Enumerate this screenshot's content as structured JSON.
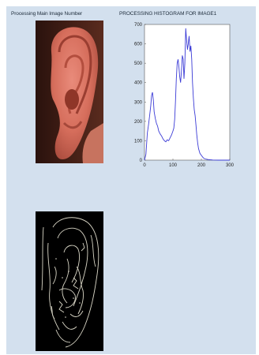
{
  "labels": {
    "left": "Processing Main Image Number",
    "right": "PROCESSING HISTOGRAM FOR IMAGE1"
  },
  "images": {
    "ear_photo": "ear-photo",
    "ear_edges": "ear-edge-map"
  },
  "colors": {
    "window_bg": "#d3e0ee",
    "plot_line": "#3b3bd6"
  },
  "chart_data": {
    "type": "line",
    "title": "",
    "xlabel": "",
    "ylabel": "",
    "xlim": [
      0,
      300
    ],
    "ylim": [
      0,
      700
    ],
    "xticks": [
      0,
      100,
      200,
      300
    ],
    "yticks": [
      0,
      100,
      200,
      300,
      400,
      500,
      600,
      700
    ],
    "series": [
      {
        "x": [
          0,
          5,
          10,
          14,
          18,
          22,
          25,
          28,
          31,
          34,
          38,
          42,
          46,
          50,
          55,
          60,
          65,
          70,
          75,
          80,
          85,
          90,
          95,
          100,
          103,
          106,
          109,
          112,
          115,
          118,
          121,
          124,
          127,
          130,
          133,
          136,
          139,
          142,
          145,
          148,
          151,
          154,
          157,
          160,
          163,
          166,
          169,
          172,
          175,
          178,
          181,
          184,
          187,
          190,
          195,
          200,
          205,
          210,
          215,
          220,
          225,
          230,
          240,
          260,
          280,
          300
        ],
        "y": [
          0,
          30,
          140,
          180,
          230,
          280,
          335,
          350,
          310,
          250,
          215,
          190,
          175,
          150,
          135,
          125,
          110,
          100,
          95,
          105,
          100,
          115,
          130,
          150,
          165,
          210,
          300,
          420,
          500,
          520,
          480,
          430,
          400,
          460,
          540,
          520,
          420,
          500,
          680,
          620,
          570,
          600,
          640,
          560,
          590,
          520,
          400,
          320,
          260,
          230,
          180,
          130,
          90,
          60,
          35,
          25,
          15,
          8,
          6,
          4,
          3,
          2,
          1,
          0,
          0,
          0
        ]
      }
    ]
  }
}
